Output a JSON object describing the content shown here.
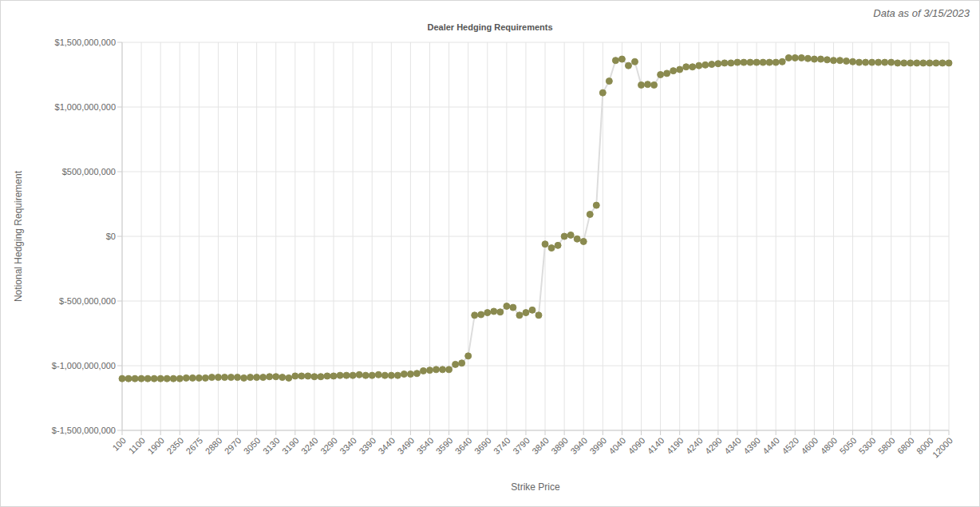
{
  "chart_data": {
    "type": "line",
    "title": "Dealer Hedging Requirements",
    "annotation": "Data as of 3/15/2023",
    "x_label": "Strike Price",
    "y_label": "Notional Hedging Requirement",
    "categories": [
      "100",
      null,
      null,
      "1100",
      null,
      null,
      "1900",
      null,
      null,
      "2350",
      null,
      null,
      "2675",
      null,
      null,
      "2880",
      null,
      null,
      "2970",
      null,
      null,
      "3050",
      null,
      null,
      "3130",
      null,
      null,
      "3190",
      null,
      null,
      "3240",
      null,
      null,
      "3290",
      null,
      null,
      "3340",
      null,
      null,
      "3390",
      null,
      null,
      "3440",
      null,
      null,
      "3490",
      null,
      null,
      "3540",
      null,
      null,
      "3590",
      null,
      null,
      "3640",
      null,
      null,
      "3690",
      null,
      null,
      "3740",
      null,
      null,
      "3790",
      null,
      null,
      "3840",
      null,
      null,
      "3890",
      null,
      null,
      "3940",
      null,
      null,
      "3990",
      null,
      null,
      "4040",
      null,
      null,
      "4090",
      null,
      null,
      "4140",
      null,
      null,
      "4190",
      null,
      null,
      "4240",
      null,
      null,
      "4290",
      null,
      null,
      "4340",
      null,
      null,
      "4390",
      null,
      null,
      "4440",
      null,
      null,
      "4520",
      null,
      null,
      "4600",
      null,
      null,
      "4800",
      null,
      null,
      "5050",
      null,
      null,
      "5300",
      null,
      null,
      "5800",
      null,
      null,
      "6800",
      null,
      null,
      "8000",
      null,
      null,
      "12000"
    ],
    "series": [
      {
        "name": "Notional Hedging Requirement",
        "color": "#8a8a4f",
        "marker": "circle",
        "values": [
          -1100000000.0,
          -1100000000.0,
          -1100000000.0,
          -1100000000.0,
          -1100000000.0,
          -1100000000.0,
          -1100000000.0,
          -1100000000.0,
          -1100000000.0,
          -1100000000.0,
          -1095000000.0,
          -1095000000.0,
          -1095000000.0,
          -1095000000.0,
          -1090000000.0,
          -1090000000.0,
          -1090000000.0,
          -1090000000.0,
          -1090000000.0,
          -1095000000.0,
          -1090000000.0,
          -1090000000.0,
          -1090000000.0,
          -1085000000.0,
          -1085000000.0,
          -1090000000.0,
          -1095000000.0,
          -1080000000.0,
          -1080000000.0,
          -1080000000.0,
          -1085000000.0,
          -1085000000.0,
          -1080000000.0,
          -1080000000.0,
          -1075000000.0,
          -1075000000.0,
          -1075000000.0,
          -1070000000.0,
          -1075000000.0,
          -1075000000.0,
          -1070000000.0,
          -1075000000.0,
          -1075000000.0,
          -1075000000.0,
          -1065000000.0,
          -1065000000.0,
          -1060000000.0,
          -1040000000.0,
          -1035000000.0,
          -1030000000.0,
          -1030000000.0,
          -1030000000.0,
          -990000000.0,
          -980000000.0,
          -925000000.0,
          -610000000.0,
          -605000000.0,
          -590000000.0,
          -580000000.0,
          -585000000.0,
          -540000000.0,
          -550000000.0,
          -610000000.0,
          -590000000.0,
          -570000000.0,
          -610000000.0,
          -60000000.0,
          -90000000.0,
          -70000000.0,
          0,
          10000000.0,
          -20000000.0,
          -40000000.0,
          170000000.0,
          240000000.0,
          1110000000.0,
          1200000000.0,
          1360000000.0,
          1370000000.0,
          1320000000.0,
          1350000000.0,
          1170000000.0,
          1175000000.0,
          1170000000.0,
          1250000000.0,
          1260000000.0,
          1280000000.0,
          1290000000.0,
          1310000000.0,
          1310000000.0,
          1320000000.0,
          1325000000.0,
          1330000000.0,
          1335000000.0,
          1340000000.0,
          1340000000.0,
          1345000000.0,
          1345000000.0,
          1345000000.0,
          1345000000.0,
          1345000000.0,
          1345000000.0,
          1345000000.0,
          1350000000.0,
          1380000000.0,
          1380000000.0,
          1380000000.0,
          1375000000.0,
          1370000000.0,
          1370000000.0,
          1365000000.0,
          1360000000.0,
          1360000000.0,
          1355000000.0,
          1350000000.0,
          1345000000.0,
          1345000000.0,
          1345000000.0,
          1345000000.0,
          1345000000.0,
          1345000000.0,
          1340000000.0,
          1340000000.0,
          1340000000.0,
          1340000000.0,
          1340000000.0,
          1340000000.0,
          1340000000.0,
          1340000000.0,
          1340000000.0
        ]
      }
    ],
    "ylim": [
      -1500000000.0,
      1500000000.0
    ],
    "yticks": [
      {
        "value": -1500000000.0,
        "label": "$-1,500,000,000"
      },
      {
        "value": -1000000000.0,
        "label": "$-1,000,000,000"
      },
      {
        "value": -500000000.0,
        "label": "$-500,000,000"
      },
      {
        "value": 0,
        "label": "$0"
      },
      {
        "value": 500000000.0,
        "label": "$500,000,000"
      },
      {
        "value": 1000000000.0,
        "label": "$1,000,000,000"
      },
      {
        "value": 1500000000.0,
        "label": "$1,500,000,000"
      }
    ],
    "grid": true
  }
}
